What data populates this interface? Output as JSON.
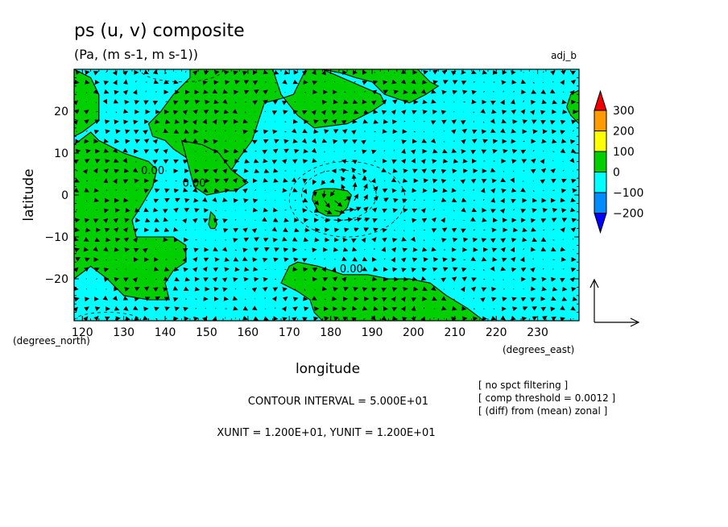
{
  "chart_data": {
    "type": "contour",
    "title": "ps (u, v) composite",
    "subtitle": "(Pa, (m s-1, m s-1))",
    "tag": "adj_b",
    "xlabel": "longitude",
    "ylabel": "latitude",
    "x_unit_label": "(degrees_east)",
    "y_unit_label": "(degrees_north)",
    "xlim": [
      118,
      240
    ],
    "ylim": [
      -30,
      30
    ],
    "xticks": [
      120,
      130,
      140,
      150,
      160,
      170,
      180,
      190,
      200,
      210,
      220,
      230
    ],
    "yticks": [
      -20,
      -10,
      0,
      10,
      20
    ],
    "ytick_labels": [
      "−20",
      "−10",
      "0",
      "10",
      "20"
    ],
    "contour_label": "0.00",
    "contour_labels": [
      {
        "text": "0.00",
        "x": 137,
        "y": 5
      },
      {
        "text": "0.00",
        "x": 147,
        "y": 2
      },
      {
        "text": "0.00",
        "x": 185,
        "y": -18.5
      }
    ],
    "positive_regions": [
      {
        "name": "west-large",
        "points": [
          [
            118,
            30
          ],
          [
            122,
            28
          ],
          [
            124,
            24
          ],
          [
            124,
            18
          ],
          [
            120,
            15
          ],
          [
            118,
            14
          ]
        ]
      },
      {
        "name": "west-mid",
        "points": [
          [
            118,
            12
          ],
          [
            122,
            15
          ],
          [
            124,
            13
          ],
          [
            130,
            10
          ],
          [
            136,
            8
          ],
          [
            138,
            6
          ],
          [
            137,
            2
          ],
          [
            134,
            -3
          ],
          [
            132,
            -6
          ],
          [
            133,
            -10
          ],
          [
            138,
            -10
          ],
          [
            142,
            -10
          ],
          [
            145,
            -12
          ],
          [
            145,
            -16
          ],
          [
            142,
            -18
          ],
          [
            140,
            -21
          ],
          [
            141,
            -25
          ],
          [
            136,
            -25
          ],
          [
            130,
            -24
          ],
          [
            126,
            -20
          ],
          [
            122,
            -17
          ],
          [
            118,
            -20
          ]
        ]
      },
      {
        "name": "north-peninsula",
        "points": [
          [
            146,
            30
          ],
          [
            166,
            30
          ],
          [
            168,
            24
          ],
          [
            172,
            19
          ],
          [
            176,
            16
          ],
          [
            184,
            17
          ],
          [
            190,
            20
          ],
          [
            193,
            22
          ],
          [
            192,
            24
          ],
          [
            178,
            30
          ],
          [
            174,
            30
          ],
          [
            171,
            24
          ],
          [
            168,
            23
          ],
          [
            164,
            22
          ],
          [
            161,
            13
          ],
          [
            158,
            9
          ],
          [
            156,
            6
          ],
          [
            151,
            4
          ],
          [
            148,
            5
          ],
          [
            147,
            6
          ],
          [
            145,
            9
          ],
          [
            142,
            11
          ],
          [
            140,
            13
          ],
          [
            137,
            14
          ],
          [
            136,
            17
          ],
          [
            139,
            20
          ],
          [
            142,
            24
          ],
          [
            146,
            28
          ]
        ]
      },
      {
        "name": "peninsula-tip",
        "points": [
          [
            144,
            13
          ],
          [
            149,
            12
          ],
          [
            153,
            10
          ],
          [
            156,
            6
          ],
          [
            160,
            3
          ],
          [
            157,
            1
          ],
          [
            155,
            1
          ],
          [
            150,
            0
          ],
          [
            147,
            2
          ]
        ]
      },
      {
        "name": "north-east-blob",
        "points": [
          [
            178,
            30
          ],
          [
            201,
            30
          ],
          [
            204,
            27
          ],
          [
            206,
            26
          ],
          [
            203,
            24
          ],
          [
            199,
            22
          ],
          [
            196,
            23
          ],
          [
            193,
            24
          ],
          [
            190,
            27
          ],
          [
            186,
            28
          ],
          [
            183,
            29
          ]
        ]
      },
      {
        "name": "east-edge",
        "points": [
          [
            240,
            25
          ],
          [
            238,
            24
          ],
          [
            237,
            21
          ],
          [
            238,
            19
          ],
          [
            240,
            17
          ]
        ]
      },
      {
        "name": "center-circle",
        "points": [
          [
            176,
            1
          ],
          [
            178,
            1.5
          ],
          [
            181,
            1.5
          ],
          [
            184,
            1
          ],
          [
            185,
            0
          ],
          [
            184,
            -3
          ],
          [
            182,
            -5
          ],
          [
            179,
            -5
          ],
          [
            177,
            -4
          ],
          [
            176,
            -2
          ],
          [
            175.5,
            -1
          ]
        ]
      },
      {
        "name": "small-island",
        "points": [
          [
            151,
            -4
          ],
          [
            152,
            -5
          ],
          [
            152.5,
            -7
          ],
          [
            152,
            -8
          ],
          [
            151,
            -8
          ],
          [
            150.5,
            -7
          ]
        ]
      },
      {
        "name": "south-large",
        "points": [
          [
            170,
            -17
          ],
          [
            172,
            -16
          ],
          [
            177,
            -17
          ],
          [
            183,
            -19
          ],
          [
            189,
            -19
          ],
          [
            194,
            -20
          ],
          [
            199,
            -20
          ],
          [
            204,
            -21
          ],
          [
            208,
            -24
          ],
          [
            213,
            -27
          ],
          [
            217,
            -30
          ],
          [
            178,
            -30
          ],
          [
            176,
            -28
          ],
          [
            175,
            -25
          ],
          [
            172,
            -23
          ],
          [
            170,
            -22
          ],
          [
            168,
            -21
          ],
          [
            169,
            -19
          ]
        ]
      }
    ],
    "negative_contours": [
      {
        "name": "anomaly-ring-inner",
        "cx": 182,
        "cy": 0,
        "rx": 9,
        "ry": 6
      },
      {
        "name": "anomaly-ring-outer",
        "cx": 184,
        "cy": -1,
        "rx": 14,
        "ry": 9
      },
      {
        "name": "north-edge-arc",
        "cx": 144,
        "cy": 30,
        "rx": 10,
        "ry": 3
      },
      {
        "name": "south-edge-arc",
        "cx": 126,
        "cy": -30,
        "rx": 8,
        "ry": 2
      }
    ],
    "vector_field": {
      "x_start": 118.5,
      "x_end": 239.5,
      "x_step": 2.4,
      "y_start": -29.5,
      "y_end": 29.5,
      "y_step": 2.35,
      "background": {
        "u": 1.0,
        "v": 0.15
      },
      "vortex": {
        "x": 182,
        "y": 0,
        "strength": 4.5,
        "radius": 8
      }
    },
    "colorbar": {
      "levels": [
        "300",
        "200",
        "100",
        "0",
        "−100",
        "−200"
      ],
      "colors": [
        "#f00000",
        "#ff9a00",
        "#ffff00",
        "#00d000",
        "#00ffff",
        "#008cff",
        "#0000ff"
      ]
    },
    "reference_vector": {
      "xunit": 12.0,
      "yunit": 12.0
    },
    "colors": {
      "positive": "#00d000",
      "negative": "#00ffff",
      "contour": "#000000"
    }
  },
  "info": {
    "contour_interval": "CONTOUR INTERVAL = 5.000E+01",
    "units": "XUNIT = 1.200E+01, YUNIT = 1.200E+01",
    "notes": [
      "[ no spct filtering ]",
      "[ comp threshold = 0.0012 ]",
      "[ (diff) from (mean) zonal ]"
    ]
  }
}
